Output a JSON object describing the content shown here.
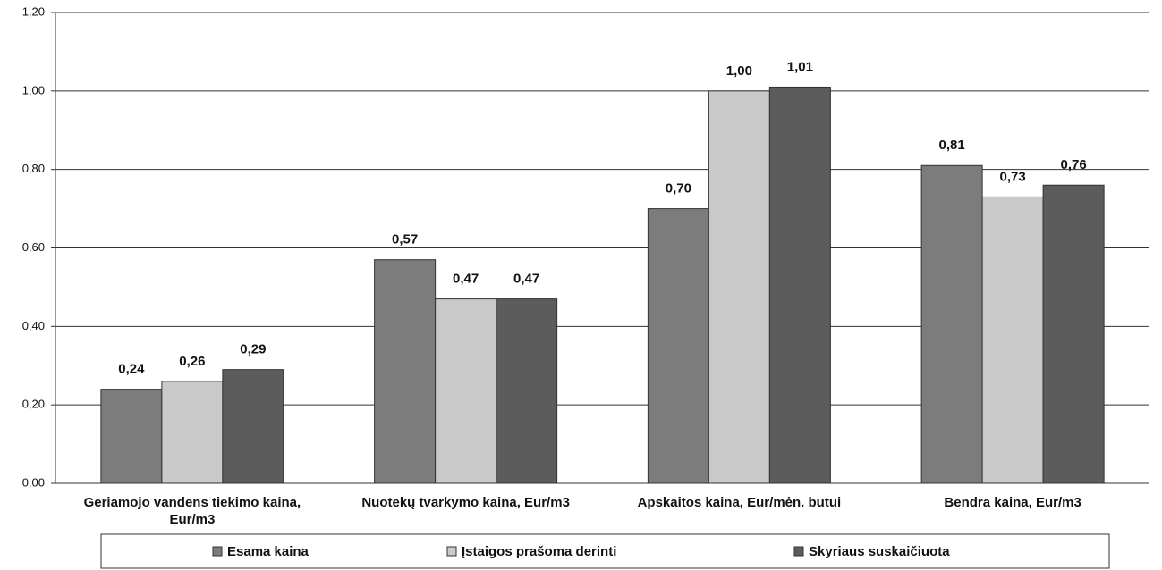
{
  "chart_data": {
    "type": "bar",
    "categories": [
      "Geriamojo vandens tiekimo kaina, Eur/m3",
      "Nuotekų tvarkymo kaina, Eur/m3",
      "Apskaitos kaina, Eur/mėn. butui",
      "Bendra kaina, Eur/m3"
    ],
    "series": [
      {
        "name": "Esama kaina",
        "color": "#7c7c7c",
        "values": [
          0.24,
          0.57,
          0.7,
          0.81
        ],
        "value_labels": [
          "0,24",
          "0,57",
          "0,70",
          "0,81"
        ]
      },
      {
        "name": "Įstaigos prašoma derinti",
        "color": "#c9c9c9",
        "values": [
          0.26,
          0.47,
          1.0,
          0.73
        ],
        "value_labels": [
          "0,26",
          "0,47",
          "1,00",
          "0,73"
        ]
      },
      {
        "name": "Skyriaus suskaičiuota",
        "color": "#5c5c5c",
        "values": [
          0.29,
          0.47,
          1.01,
          0.76
        ],
        "value_labels": [
          "0,29",
          "0,47",
          "1,01",
          "0,76"
        ]
      }
    ],
    "ylim": [
      0,
      1.2
    ],
    "yticks": [
      {
        "value": 0,
        "label": "0,00"
      },
      {
        "value": 0.2,
        "label": "0,20"
      },
      {
        "value": 0.4,
        "label": "0,40"
      },
      {
        "value": 0.6,
        "label": "0,60"
      },
      {
        "value": 0.8,
        "label": "0,80"
      },
      {
        "value": 1.0,
        "label": "1,00"
      },
      {
        "value": 1.2,
        "label": "1,20"
      }
    ],
    "grid": true,
    "legend": "bottom"
  }
}
